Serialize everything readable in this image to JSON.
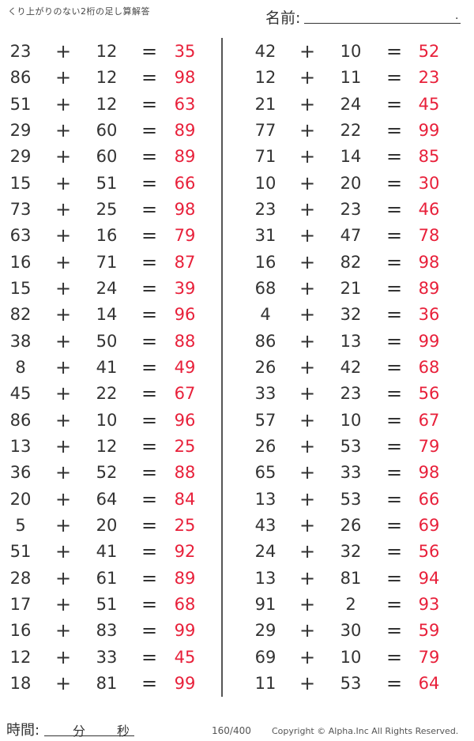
{
  "header": {
    "title": "くり上がりのない2桁の足し算解答",
    "name_label": "名前:",
    "name_end": "."
  },
  "operators": {
    "plus": "+",
    "equals": "="
  },
  "colors": {
    "answer": "#e8203a",
    "text": "#333333"
  },
  "left": [
    [
      "23",
      "12",
      "35"
    ],
    [
      "86",
      "12",
      "98"
    ],
    [
      "51",
      "12",
      "63"
    ],
    [
      "29",
      "60",
      "89"
    ],
    [
      "29",
      "60",
      "89"
    ],
    [
      "15",
      "51",
      "66"
    ],
    [
      "73",
      "25",
      "98"
    ],
    [
      "63",
      "16",
      "79"
    ],
    [
      "16",
      "71",
      "87"
    ],
    [
      "15",
      "24",
      "39"
    ],
    [
      "82",
      "14",
      "96"
    ],
    [
      "38",
      "50",
      "88"
    ],
    [
      "8",
      "41",
      "49"
    ],
    [
      "45",
      "22",
      "67"
    ],
    [
      "86",
      "10",
      "96"
    ],
    [
      "13",
      "12",
      "25"
    ],
    [
      "36",
      "52",
      "88"
    ],
    [
      "20",
      "64",
      "84"
    ],
    [
      "5",
      "20",
      "25"
    ],
    [
      "51",
      "41",
      "92"
    ],
    [
      "28",
      "61",
      "89"
    ],
    [
      "17",
      "51",
      "68"
    ],
    [
      "16",
      "83",
      "99"
    ],
    [
      "12",
      "33",
      "45"
    ],
    [
      "18",
      "81",
      "99"
    ]
  ],
  "right": [
    [
      "42",
      "10",
      "52"
    ],
    [
      "12",
      "11",
      "23"
    ],
    [
      "21",
      "24",
      "45"
    ],
    [
      "77",
      "22",
      "99"
    ],
    [
      "71",
      "14",
      "85"
    ],
    [
      "10",
      "20",
      "30"
    ],
    [
      "23",
      "23",
      "46"
    ],
    [
      "31",
      "47",
      "78"
    ],
    [
      "16",
      "82",
      "98"
    ],
    [
      "68",
      "21",
      "89"
    ],
    [
      "4",
      "32",
      "36"
    ],
    [
      "86",
      "13",
      "99"
    ],
    [
      "26",
      "42",
      "68"
    ],
    [
      "33",
      "23",
      "56"
    ],
    [
      "57",
      "10",
      "67"
    ],
    [
      "26",
      "53",
      "79"
    ],
    [
      "65",
      "33",
      "98"
    ],
    [
      "13",
      "53",
      "66"
    ],
    [
      "43",
      "26",
      "69"
    ],
    [
      "24",
      "32",
      "56"
    ],
    [
      "13",
      "81",
      "94"
    ],
    [
      "91",
      "2",
      "93"
    ],
    [
      "29",
      "30",
      "59"
    ],
    [
      "69",
      "10",
      "79"
    ],
    [
      "11",
      "53",
      "64"
    ]
  ],
  "footer": {
    "time_label": "時間:",
    "minutes": "分",
    "seconds": "秒",
    "page": "160/400",
    "copyright": "Copyright ©  Alpha.Inc All Rights Reserved."
  }
}
